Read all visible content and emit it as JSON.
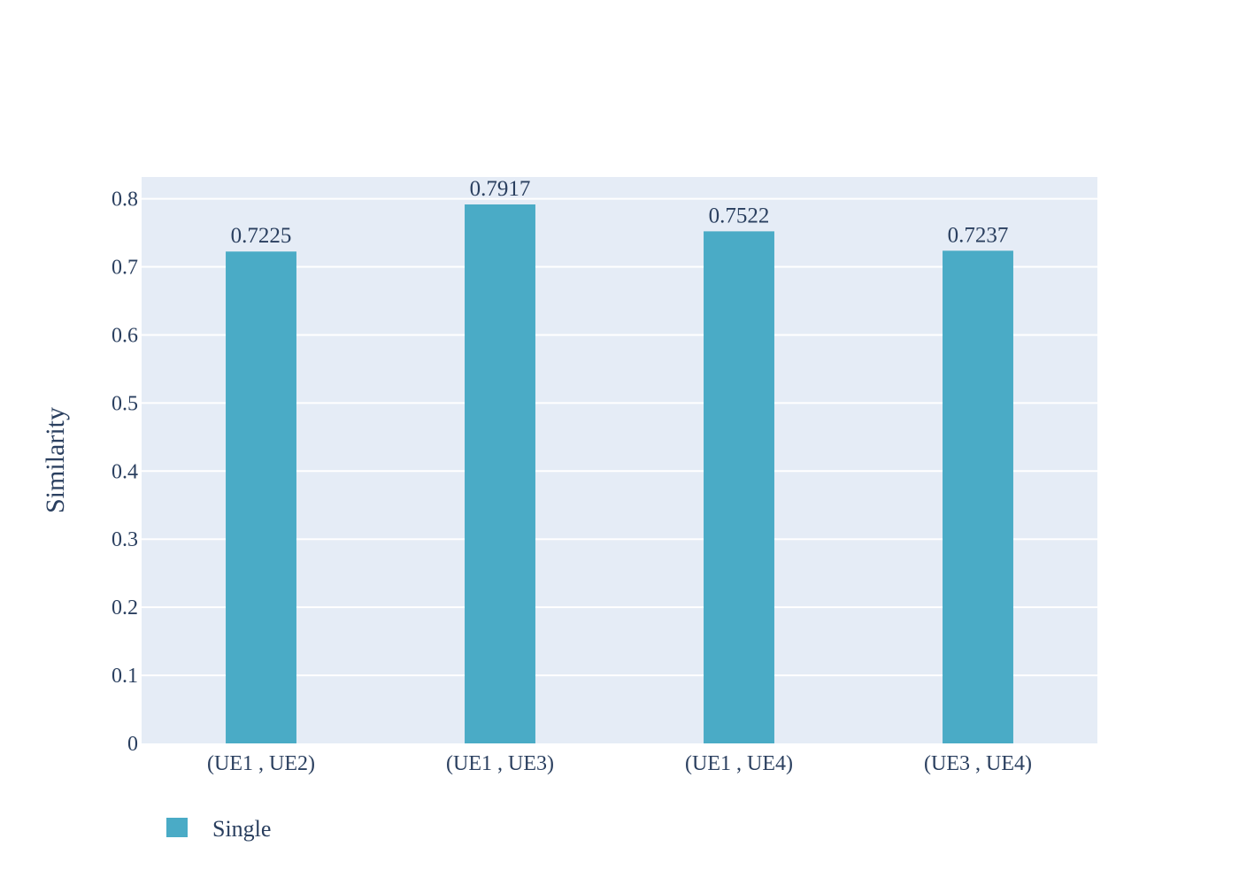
{
  "chart_data": {
    "type": "bar",
    "categories": [
      "(UE1 , UE2)",
      "(UE1 , UE3)",
      "(UE1 , UE4)",
      "(UE3 , UE4)"
    ],
    "series": [
      {
        "name": "Single",
        "values": [
          0.7225,
          0.7917,
          0.7522,
          0.7237
        ],
        "labels": [
          "0.7225",
          "0.7917",
          "0.7522",
          "0.7237"
        ]
      }
    ],
    "ylabel": "Similarity",
    "xlabel": "",
    "ylim": [
      0,
      0.832
    ],
    "yticks": [
      0,
      0.1,
      0.2,
      0.3,
      0.4,
      0.5,
      0.6,
      0.7,
      0.8
    ],
    "ytick_labels": [
      "0",
      "0.1",
      "0.2",
      "0.3",
      "0.4",
      "0.5",
      "0.6",
      "0.7",
      "0.8"
    ],
    "grid": true,
    "legend_position": "bottom-left",
    "colors": {
      "bar": "#4aabc6",
      "plot_background": "#e5ecf6",
      "grid": "#ffffff",
      "text": "#2a3f5f"
    }
  }
}
